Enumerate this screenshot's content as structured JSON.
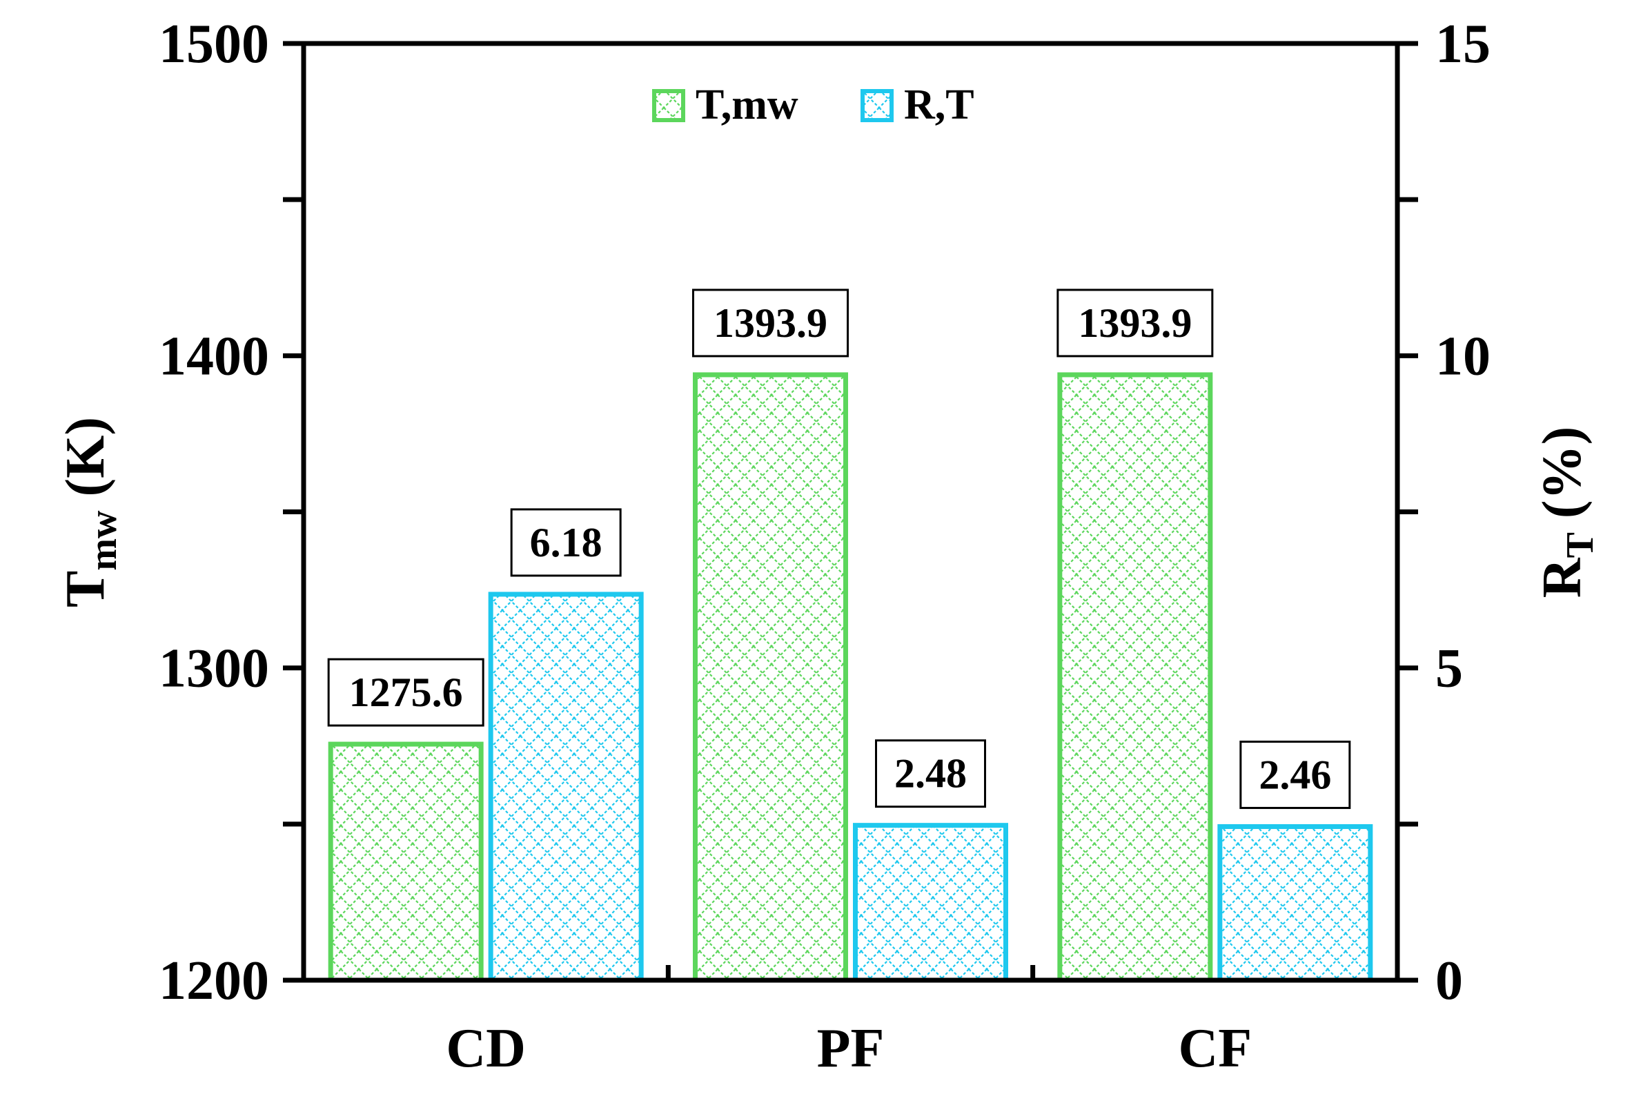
{
  "chart_data": {
    "type": "bar",
    "categories": [
      "CD",
      "PF",
      "CF"
    ],
    "series": [
      {
        "name": "T,mw",
        "axis": "left",
        "color": "#5CD65C",
        "values": [
          1275.6,
          1393.9,
          1393.9
        ],
        "labels": [
          "1275.6",
          "1393.9",
          "1393.9"
        ]
      },
      {
        "name": "R,T",
        "axis": "right",
        "color": "#1EC8EE",
        "values": [
          6.18,
          2.48,
          2.46
        ],
        "labels": [
          "6.18",
          "2.48",
          "2.46"
        ]
      }
    ],
    "y_left": {
      "label_main": "T",
      "label_sub": "mw",
      "label_unit": " (K)",
      "range": [
        1200,
        1500
      ],
      "ticks": [
        "1200",
        "1300",
        "1400",
        "1500"
      ]
    },
    "y_right": {
      "label_main": "R",
      "label_sub": "T",
      "label_unit": " (%)",
      "range": [
        0,
        15
      ],
      "ticks": [
        "0",
        "5",
        "10",
        "15"
      ]
    },
    "legend": {
      "placement": "top-center"
    },
    "grid": false
  }
}
